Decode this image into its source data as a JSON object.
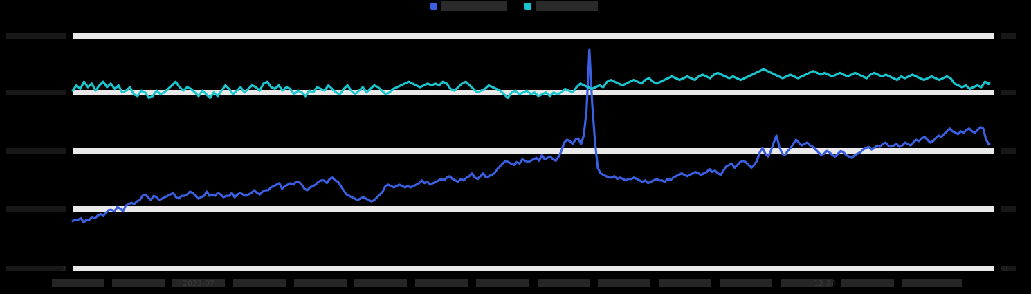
{
  "chart_data": {
    "type": "line",
    "title": "",
    "left_axis_ticks": [
      0
    ],
    "right_axis_ticks": [
      0
    ],
    "x_ticks": [
      "2023-07",
      "12-24"
    ],
    "series": [
      {
        "color": "#3a5fe0",
        "axis": "left",
        "values": [
          1.4,
          1.5,
          1.5,
          1.6,
          1.3,
          1.5,
          1.5,
          1.7,
          1.6,
          1.8,
          1.9,
          1.8,
          2.0,
          2.2,
          2.2,
          2.1,
          2.4,
          2.3,
          2.1,
          2.5,
          2.6,
          2.7,
          2.6,
          2.8,
          2.9,
          3.2,
          3.3,
          3.1,
          2.9,
          3.2,
          3.1,
          2.9,
          3.0,
          3.1,
          3.2,
          3.3,
          3.4,
          3.1,
          3.0,
          3.2,
          3.2,
          3.3,
          3.5,
          3.4,
          3.2,
          3.0,
          3.1,
          3.2,
          3.5,
          3.2,
          3.3,
          3.2,
          3.4,
          3.3,
          3.1,
          3.2,
          3.2,
          3.4,
          3.1,
          3.3,
          3.4,
          3.3,
          3.2,
          3.3,
          3.4,
          3.6,
          3.4,
          3.3,
          3.5,
          3.6,
          3.6,
          3.8,
          3.9,
          4.0,
          4.1,
          3.7,
          3.9,
          4.0,
          4.1,
          4.0,
          4.2,
          4.2,
          4.0,
          3.7,
          3.6,
          3.8,
          3.9,
          4.0,
          4.2,
          4.3,
          4.3,
          4.1,
          4.4,
          4.5,
          4.3,
          4.2,
          3.9,
          3.6,
          3.3,
          3.2,
          3.1,
          3.0,
          2.9,
          3.0,
          3.1,
          3.0,
          2.9,
          2.8,
          2.9,
          3.1,
          3.3,
          3.5,
          3.9,
          4.0,
          3.9,
          3.8,
          3.9,
          4.0,
          3.9,
          3.8,
          3.9,
          3.8,
          3.9,
          4.0,
          4.1,
          4.3,
          4.1,
          4.2,
          4.0,
          4.1,
          4.2,
          4.3,
          4.4,
          4.3,
          4.5,
          4.6,
          4.4,
          4.3,
          4.2,
          4.4,
          4.3,
          4.5,
          4.6,
          4.8,
          4.5,
          4.4,
          4.6,
          4.8,
          4.5,
          4.6,
          4.7,
          4.8,
          5.1,
          5.3,
          5.5,
          5.7,
          5.6,
          5.5,
          5.4,
          5.6,
          5.5,
          5.8,
          5.7,
          5.6,
          5.7,
          5.8,
          5.9,
          5.7,
          6.1,
          5.8,
          5.9,
          6.0,
          5.8,
          5.7,
          6.0,
          6.4,
          7.0,
          7.2,
          7.1,
          6.9,
          7.2,
          7.3,
          6.9,
          7.5,
          9.3,
          13.6,
          9.8,
          7.1,
          5.2,
          4.8,
          4.7,
          4.6,
          4.5,
          4.5,
          4.6,
          4.4,
          4.5,
          4.4,
          4.3,
          4.4,
          4.4,
          4.5,
          4.4,
          4.3,
          4.2,
          4.3,
          4.1,
          4.2,
          4.3,
          4.4,
          4.3,
          4.3,
          4.2,
          4.4,
          4.3,
          4.5,
          4.6,
          4.7,
          4.8,
          4.7,
          4.6,
          4.7,
          4.8,
          4.9,
          4.8,
          4.7,
          4.8,
          4.9,
          5.1,
          4.9,
          5.0,
          4.8,
          4.7,
          5.0,
          5.3,
          5.4,
          5.5,
          5.2,
          5.4,
          5.6,
          5.7,
          5.6,
          5.4,
          5.2,
          5.4,
          5.7,
          6.3,
          6.6,
          6.2,
          6.0,
          6.4,
          7.0,
          7.5,
          6.7,
          6.2,
          6.1,
          6.4,
          6.6,
          6.9,
          7.2,
          7.0,
          6.8,
          6.9,
          7.0,
          6.8,
          6.7,
          6.5,
          6.3,
          6.1,
          6.2,
          6.4,
          6.3,
          6.1,
          6.0,
          6.2,
          6.4,
          6.3,
          6.1,
          6.0,
          5.9,
          6.1,
          6.2,
          6.3,
          6.5,
          6.6,
          6.7,
          6.5,
          6.6,
          6.8,
          6.7,
          6.9,
          7.0,
          6.8,
          6.7,
          6.8,
          6.9,
          6.7,
          6.8,
          7.0,
          6.9,
          6.8,
          7.0,
          7.2,
          7.1,
          7.3,
          7.4,
          7.2,
          7.0,
          7.1,
          7.3,
          7.5,
          7.4,
          7.6,
          7.8,
          8.0,
          7.8,
          7.7,
          7.6,
          7.8,
          7.7,
          7.9,
          8.0,
          7.8,
          7.7,
          7.9,
          8.1,
          8.0,
          7.2,
          6.9
        ]
      },
      {
        "color": "#19c6cf",
        "axis": "right",
        "values": [
          8.4,
          8.7,
          8.5,
          8.9,
          8.6,
          8.8,
          8.4,
          8.7,
          8.9,
          8.6,
          8.8,
          8.5,
          8.7,
          8.3,
          8.4,
          8.6,
          8.2,
          8.1,
          8.4,
          8.3,
          8.0,
          8.1,
          8.4,
          8.2,
          8.3,
          8.5,
          8.7,
          8.9,
          8.6,
          8.4,
          8.6,
          8.5,
          8.3,
          8.1,
          8.4,
          8.2,
          8.0,
          8.3,
          8.1,
          8.4,
          8.7,
          8.5,
          8.2,
          8.4,
          8.6,
          8.3,
          8.5,
          8.7,
          8.6,
          8.4,
          8.8,
          8.9,
          8.6,
          8.5,
          8.7,
          8.4,
          8.6,
          8.5,
          8.2,
          8.4,
          8.3,
          8.1,
          8.4,
          8.3,
          8.6,
          8.5,
          8.4,
          8.7,
          8.5,
          8.3,
          8.2,
          8.5,
          8.7,
          8.4,
          8.2,
          8.4,
          8.6,
          8.3,
          8.5,
          8.7,
          8.6,
          8.4,
          8.2,
          8.3,
          8.5,
          8.6,
          8.7,
          8.8,
          8.9,
          8.8,
          8.7,
          8.6,
          8.7,
          8.8,
          8.7,
          8.8,
          8.7,
          8.9,
          8.8,
          8.5,
          8.4,
          8.6,
          8.8,
          8.9,
          8.7,
          8.5,
          8.3,
          8.4,
          8.5,
          8.7,
          8.6,
          8.5,
          8.4,
          8.2,
          8.0,
          8.3,
          8.4,
          8.2,
          8.3,
          8.4,
          8.2,
          8.3,
          8.1,
          8.2,
          8.3,
          8.1,
          8.3,
          8.2,
          8.3,
          8.5,
          8.4,
          8.3,
          8.6,
          8.8,
          8.7,
          8.6,
          8.5,
          8.6,
          8.7,
          8.6,
          8.9,
          9.0,
          8.9,
          8.8,
          8.7,
          8.8,
          8.9,
          9.0,
          8.9,
          8.8,
          9.0,
          9.1,
          8.9,
          8.8,
          8.9,
          9.0,
          9.1,
          9.2,
          9.1,
          9.0,
          9.1,
          9.2,
          9.1,
          9.0,
          9.2,
          9.3,
          9.2,
          9.1,
          9.3,
          9.4,
          9.3,
          9.2,
          9.1,
          9.2,
          9.1,
          9.0,
          9.1,
          9.2,
          9.3,
          9.4,
          9.5,
          9.6,
          9.5,
          9.4,
          9.3,
          9.2,
          9.1,
          9.2,
          9.3,
          9.2,
          9.1,
          9.2,
          9.3,
          9.4,
          9.5,
          9.4,
          9.3,
          9.4,
          9.3,
          9.2,
          9.3,
          9.4,
          9.3,
          9.2,
          9.3,
          9.4,
          9.3,
          9.2,
          9.1,
          9.3,
          9.4,
          9.3,
          9.2,
          9.3,
          9.2,
          9.1,
          9.0,
          9.2,
          9.1,
          9.2,
          9.3,
          9.2,
          9.1,
          9.0,
          9.1,
          9.2,
          9.1,
          9.0,
          9.1,
          9.2,
          9.1,
          8.8,
          8.7,
          8.6,
          8.7,
          8.5,
          8.6,
          8.7,
          8.6,
          8.9,
          8.8
        ]
      }
    ]
  }
}
